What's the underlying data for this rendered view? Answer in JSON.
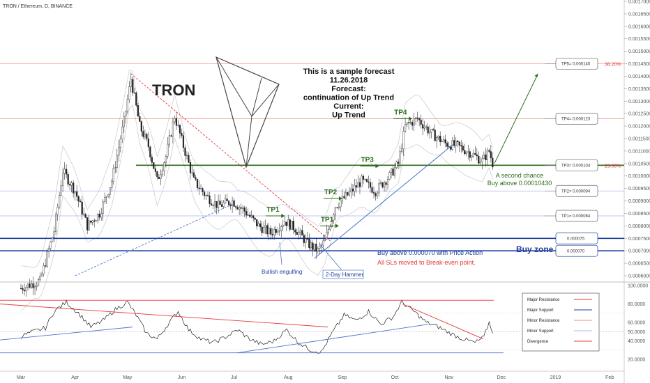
{
  "header": {
    "symbol_title": "TRON / Ethereum, D, BINANCE"
  },
  "chart_data": [
    {
      "type": "candlestick",
      "title": "TRON",
      "annotation_text": [
        "This is a sample forecast",
        "11.26.2018",
        "Forecast:",
        "continuation of Up Trend",
        "Current:",
        "Up Trend"
      ],
      "x_ticks": [
        "Mar",
        "Apr",
        "May",
        "Jun",
        "Jul",
        "Aug",
        "Sep",
        "Oct",
        "Nov",
        "Dec",
        "2019",
        "Feb"
      ],
      "y_ticks": [
        "0.0017000",
        "0.0016500",
        "0.0016000",
        "0.0015500",
        "0.0015000",
        "0.0014500",
        "0.0014000",
        "0.0013500",
        "0.0013000",
        "0.0012500",
        "0.0012000",
        "0.0011500",
        "0.0011000",
        "0.0010500",
        "0.0010000",
        "0.0009500",
        "0.0009000",
        "0.0008500",
        "0.0008000",
        "0.0007500",
        "0.0007000",
        "0.0006500",
        "0.0006000"
      ],
      "ylim": [
        0.0006,
        0.0017
      ],
      "close_path": [
        [
          "2018-03-01",
          0.00055
        ],
        [
          "2018-03-12",
          0.00058
        ],
        [
          "2018-03-20",
          0.00078
        ],
        [
          "2018-03-25",
          0.00102
        ],
        [
          "2018-04-01",
          0.00094
        ],
        [
          "2018-04-08",
          0.0008
        ],
        [
          "2018-04-15",
          0.00085
        ],
        [
          "2018-04-22",
          0.00098
        ],
        [
          "2018-04-29",
          0.00122
        ],
        [
          "2018-05-03",
          0.00139
        ],
        [
          "2018-05-08",
          0.0012
        ],
        [
          "2018-05-13",
          0.00112
        ],
        [
          "2018-05-18",
          0.00098
        ],
        [
          "2018-05-23",
          0.00108
        ],
        [
          "2018-05-28",
          0.00124
        ],
        [
          "2018-06-02",
          0.00112
        ],
        [
          "2018-06-08",
          0.00098
        ],
        [
          "2018-06-15",
          0.00092
        ],
        [
          "2018-06-22",
          0.00088
        ],
        [
          "2018-06-30",
          0.0009
        ],
        [
          "2018-07-07",
          0.00086
        ],
        [
          "2018-07-15",
          0.0008
        ],
        [
          "2018-07-22",
          0.00077
        ],
        [
          "2018-07-30",
          0.00082
        ],
        [
          "2018-08-05",
          0.00079
        ],
        [
          "2018-08-12",
          0.00073
        ],
        [
          "2018-08-18",
          0.0007
        ],
        [
          "2018-08-22",
          0.00074
        ],
        [
          "2018-08-28",
          0.00088
        ],
        [
          "2018-09-05",
          0.00093
        ],
        [
          "2018-09-12",
          0.00098
        ],
        [
          "2018-09-20",
          0.00094
        ],
        [
          "2018-09-28",
          0.001
        ],
        [
          "2018-10-03",
          0.00105
        ],
        [
          "2018-10-07",
          0.0012
        ],
        [
          "2018-10-14",
          0.00123
        ],
        [
          "2018-10-22",
          0.00117
        ],
        [
          "2018-10-30",
          0.00113
        ],
        [
          "2018-11-06",
          0.00112
        ],
        [
          "2018-11-14",
          0.00109
        ],
        [
          "2018-11-20",
          0.00106
        ],
        [
          "2018-11-24",
          0.0011
        ],
        [
          "2018-11-26",
          0.00105
        ]
      ],
      "horizontal_levels": [
        {
          "price": 0.00145,
          "label": "38.20%",
          "color": "#f28b82"
        },
        {
          "price": 0.00123,
          "label": "",
          "color": "#f28b82"
        },
        {
          "price": 0.001043,
          "label": "23.60%",
          "color": "#2e6b1a"
        },
        {
          "price": 0.00094,
          "label": "",
          "color": "#a6b9e8"
        },
        {
          "price": 0.00084,
          "label": "",
          "color": "#a6b9e8"
        },
        {
          "price": 0.00075,
          "label": "",
          "color": "#1e3f9c"
        },
        {
          "price": 0.0007,
          "label": "",
          "color": "#1e3f9c"
        }
      ],
      "target_boxes": [
        {
          "label": "TP5= 0.000145",
          "price": 0.00145
        },
        {
          "label": "TP4= 0.000123",
          "price": 0.00123
        },
        {
          "label": "TP3= 0.000104",
          "price": 0.001043
        },
        {
          "label": "TP2= 0.000094",
          "price": 0.00094
        },
        {
          "label": "TP1= 0.000084",
          "price": 0.00084
        },
        {
          "label": "0.000075",
          "price": 0.00075
        },
        {
          "label": "0.000070",
          "price": 0.0007
        }
      ],
      "tp_markers": [
        {
          "label": "TP1",
          "date": "2018-07-26",
          "price": 0.00084
        },
        {
          "label": "TP1",
          "date": "2018-08-26",
          "price": 0.0008
        },
        {
          "label": "TP2",
          "date": "2018-08-28",
          "price": 0.00091
        },
        {
          "label": "TP3",
          "date": "2018-09-18",
          "price": 0.00104
        },
        {
          "label": "TP4",
          "date": "2018-10-07",
          "price": 0.00123
        }
      ],
      "annotations": {
        "a_second_chance": "A second chance",
        "buy_above_tp3": "Buy above 0.00010430",
        "buy_zone": "Buy zone",
        "buy_above_70": "Buy above 0.000070 with Price Action",
        "sls_moved": "All SLs moved to Break-even point.",
        "bullish_engulfing": "Bullish engulfing",
        "two_day_hammer": "2-Day Hammer"
      }
    },
    {
      "type": "line",
      "name": "RSI panel",
      "y_ticks": [
        "100.0000",
        "80.0000",
        "60.0000",
        "50.0000",
        "40.0000",
        "20.0000"
      ],
      "ylim": [
        0,
        100
      ],
      "values": [
        [
          "2018-03-01",
          45
        ],
        [
          "2018-03-08",
          50
        ],
        [
          "2018-03-15",
          54
        ],
        [
          "2018-03-20",
          72
        ],
        [
          "2018-03-27",
          82
        ],
        [
          "2018-04-03",
          70
        ],
        [
          "2018-04-10",
          55
        ],
        [
          "2018-04-17",
          62
        ],
        [
          "2018-04-24",
          74
        ],
        [
          "2018-05-01",
          82
        ],
        [
          "2018-05-06",
          68
        ],
        [
          "2018-05-12",
          48
        ],
        [
          "2018-05-18",
          42
        ],
        [
          "2018-05-25",
          60
        ],
        [
          "2018-05-30",
          72
        ],
        [
          "2018-06-05",
          52
        ],
        [
          "2018-06-12",
          42
        ],
        [
          "2018-06-19",
          38
        ],
        [
          "2018-06-26",
          44
        ],
        [
          "2018-07-03",
          52
        ],
        [
          "2018-07-10",
          42
        ],
        [
          "2018-07-17",
          36
        ],
        [
          "2018-07-24",
          40
        ],
        [
          "2018-07-31",
          52
        ],
        [
          "2018-08-07",
          38
        ],
        [
          "2018-08-14",
          30
        ],
        [
          "2018-08-20",
          28
        ],
        [
          "2018-08-26",
          48
        ],
        [
          "2018-09-02",
          68
        ],
        [
          "2018-09-09",
          62
        ],
        [
          "2018-09-16",
          72
        ],
        [
          "2018-09-23",
          58
        ],
        [
          "2018-09-30",
          66
        ],
        [
          "2018-10-05",
          82
        ],
        [
          "2018-10-12",
          72
        ],
        [
          "2018-10-19",
          60
        ],
        [
          "2018-10-26",
          55
        ],
        [
          "2018-11-02",
          48
        ],
        [
          "2018-11-09",
          42
        ],
        [
          "2018-11-16",
          38
        ],
        [
          "2018-11-21",
          44
        ],
        [
          "2018-11-24",
          60
        ],
        [
          "2018-11-26",
          50
        ]
      ],
      "legend": [
        {
          "label": "Major Resistance",
          "color": "#e53935"
        },
        {
          "label": "Major Support",
          "color": "#1e3f9c"
        },
        {
          "label": "Minor Resistance",
          "color": "#f28b82"
        },
        {
          "label": "Minor Support",
          "color": "#a6b9e8"
        },
        {
          "label": "Divergence",
          "color": "#e53935"
        }
      ]
    }
  ],
  "colors": {
    "candle_up": "#333333",
    "candle_down": "#111111",
    "green": "#2e6b1a",
    "blue": "#1e3f9c",
    "red": "#e53935",
    "light_red": "#f28b82",
    "light_blue": "#a6b9e8"
  }
}
